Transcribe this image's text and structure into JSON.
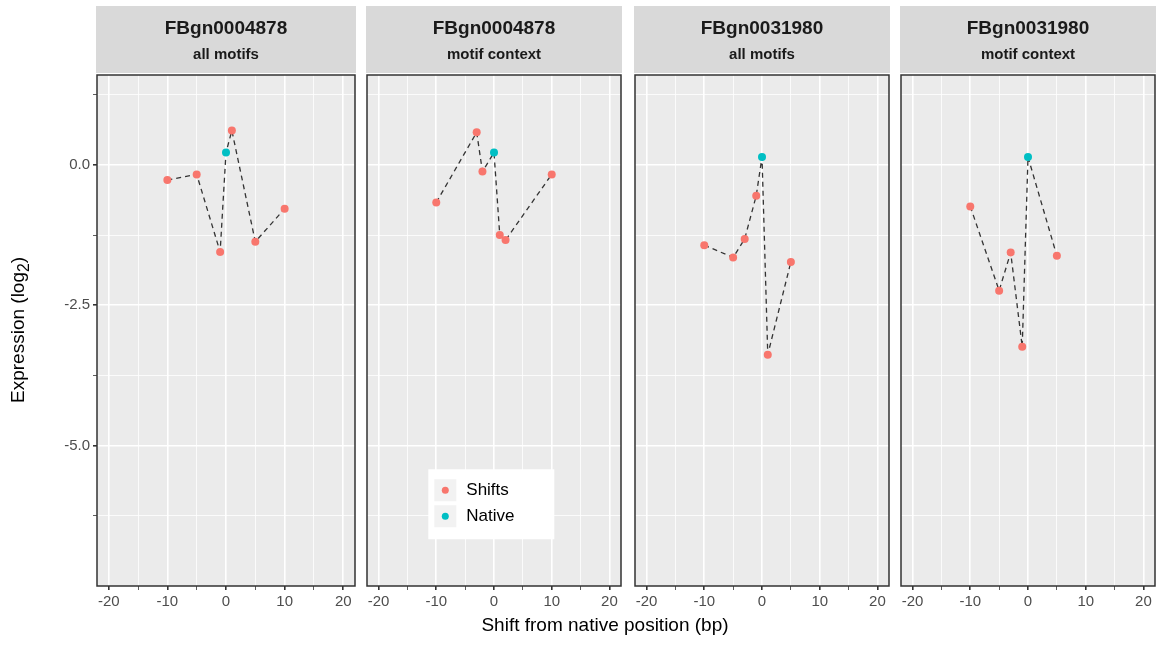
{
  "chart_data": [
    {
      "type": "scatter",
      "title": "FBgn0004878",
      "subtitle": "all motifs",
      "ylabel": "Expression (log$_{2}$)",
      "xlim": [
        -22,
        22
      ],
      "xticks": [
        -20,
        {
          "value": -15,
          "label": null
        },
        -10,
        {
          "value": -5,
          "label": null
        },
        0,
        {
          "value": 5,
          "label": null
        },
        10,
        {
          "value": 15,
          "label": null
        },
        20
      ],
      "ylim": [
        -7.5,
        1.6
      ],
      "yticks": [
        {
          "value": -6.25,
          "label": null
        },
        {
          "value": -5,
          "label": "-5.0"
        },
        {
          "value": -3.75,
          "label": null
        },
        {
          "value": -2.5,
          "label": "-2.5"
        },
        {
          "value": -1.25,
          "label": null
        },
        {
          "value": 0,
          "label": "0.0"
        },
        {
          "value": 1.25,
          "label": null
        }
      ],
      "grid": true,
      "series": [
        {
          "type": "line",
          "color": "#333333",
          "line_style": "dashed",
          "marker": "none",
          "x": [
            -10,
            -5,
            -1,
            0,
            1,
            5,
            10
          ],
          "values": [
            -0.27,
            -0.17,
            -1.55,
            0.22,
            0.61,
            -1.37,
            -0.78
          ]
        },
        {
          "type": "scatter",
          "color": "#f8766d",
          "marker": "circle",
          "x": [
            -10,
            -5,
            -1,
            1,
            5,
            10
          ],
          "values": [
            -0.27,
            -0.17,
            -1.55,
            0.61,
            -1.37,
            -0.78
          ]
        },
        {
          "type": "scatter",
          "color": "#00bfc4",
          "marker": "circle",
          "x": [
            0
          ],
          "values": [
            0.22
          ]
        }
      ]
    },
    {
      "type": "scatter",
      "title": "FBgn0004878",
      "subtitle": "motif context",
      "xlabel": "Shift from native position (bp)",
      "tick_labels": "x",
      "legend": "bottom",
      "xlim": [
        -22,
        22
      ],
      "xticks": [
        -20,
        {
          "value": -15,
          "label": null
        },
        -10,
        {
          "value": -5,
          "label": null
        },
        0,
        {
          "value": 5,
          "label": null
        },
        10,
        {
          "value": 15,
          "label": null
        },
        20
      ],
      "ylim": [
        -7.5,
        1.6
      ],
      "yticks": [
        {
          "value": -6.25,
          "label": null
        },
        -5,
        {
          "value": -3.75,
          "label": null
        },
        -2.5,
        {
          "value": -1.25,
          "label": null
        },
        0,
        {
          "value": 1.25,
          "label": null
        }
      ],
      "grid": true,
      "series": [
        {
          "type": "line",
          "color": "#333333",
          "line_style": "dashed",
          "marker": "none",
          "x": [
            -10,
            -3,
            -2,
            0,
            1,
            2,
            10
          ],
          "values": [
            -0.67,
            0.58,
            -0.12,
            0.22,
            -1.25,
            -1.34,
            -0.17
          ]
        },
        {
          "type": "scatter",
          "name": "Shifts",
          "color": "#f8766d",
          "marker": "circle",
          "x": [
            -10,
            -3,
            -2,
            1,
            2,
            10
          ],
          "values": [
            -0.67,
            0.58,
            -0.12,
            -1.25,
            -1.34,
            -0.17
          ]
        },
        {
          "type": "scatter",
          "name": "Native",
          "color": "#00bfc4",
          "marker": "circle",
          "x": [
            0
          ],
          "values": [
            0.22
          ]
        }
      ]
    },
    {
      "type": "scatter",
      "title": "FBgn0031980",
      "subtitle": "all motifs",
      "tick_labels": "x",
      "xlim": [
        -22,
        22
      ],
      "xticks": [
        -20,
        {
          "value": -15,
          "label": null
        },
        -10,
        {
          "value": -5,
          "label": null
        },
        0,
        {
          "value": 5,
          "label": null
        },
        10,
        {
          "value": 15,
          "label": null
        },
        20
      ],
      "ylim": [
        -7.5,
        1.6
      ],
      "yticks": [
        {
          "value": -6.25,
          "label": null
        },
        -5,
        {
          "value": -3.75,
          "label": null
        },
        -2.5,
        {
          "value": -1.25,
          "label": null
        },
        0,
        {
          "value": 1.25,
          "label": null
        }
      ],
      "grid": true,
      "series": [
        {
          "type": "line",
          "color": "#333333",
          "line_style": "dashed",
          "marker": "none",
          "x": [
            -10,
            -5,
            -3,
            -1,
            0,
            1,
            5
          ],
          "values": [
            -1.43,
            -1.65,
            -1.32,
            -0.55,
            0.14,
            -3.38,
            -1.73
          ]
        },
        {
          "type": "scatter",
          "color": "#f8766d",
          "marker": "circle",
          "x": [
            -10,
            -5,
            -3,
            -1,
            1,
            5
          ],
          "values": [
            -1.43,
            -1.65,
            -1.32,
            -0.55,
            -3.38,
            -1.73
          ]
        },
        {
          "type": "scatter",
          "color": "#00bfc4",
          "marker": "circle",
          "x": [
            0
          ],
          "values": [
            0.14
          ]
        }
      ]
    },
    {
      "type": "scatter",
      "title": "FBgn0031980",
      "subtitle": "motif context",
      "tick_labels": "x",
      "xlim": [
        -22,
        22
      ],
      "xticks": [
        -20,
        {
          "value": -15,
          "label": null
        },
        -10,
        {
          "value": -5,
          "label": null
        },
        0,
        {
          "value": 5,
          "label": null
        },
        10,
        {
          "value": 15,
          "label": null
        },
        20
      ],
      "ylim": [
        -7.5,
        1.6
      ],
      "yticks": [
        {
          "value": -6.25,
          "label": null
        },
        -5,
        {
          "value": -3.75,
          "label": null
        },
        -2.5,
        {
          "value": -1.25,
          "label": null
        },
        0,
        {
          "value": 1.25,
          "label": null
        }
      ],
      "grid": true,
      "series": [
        {
          "type": "line",
          "color": "#333333",
          "line_style": "dashed",
          "marker": "none",
          "x": [
            -10,
            -5,
            -3,
            -1,
            0,
            5
          ],
          "values": [
            -0.74,
            -2.24,
            -1.56,
            -3.24,
            0.14,
            -1.62
          ]
        },
        {
          "type": "scatter",
          "color": "#f8766d",
          "marker": "circle",
          "x": [
            -10,
            -5,
            -3,
            -1,
            5
          ],
          "values": [
            -0.74,
            -2.24,
            -1.56,
            -3.24,
            -1.62
          ]
        },
        {
          "type": "scatter",
          "color": "#00bfc4",
          "marker": "circle",
          "x": [
            0
          ],
          "values": [
            0.14
          ]
        }
      ]
    }
  ]
}
